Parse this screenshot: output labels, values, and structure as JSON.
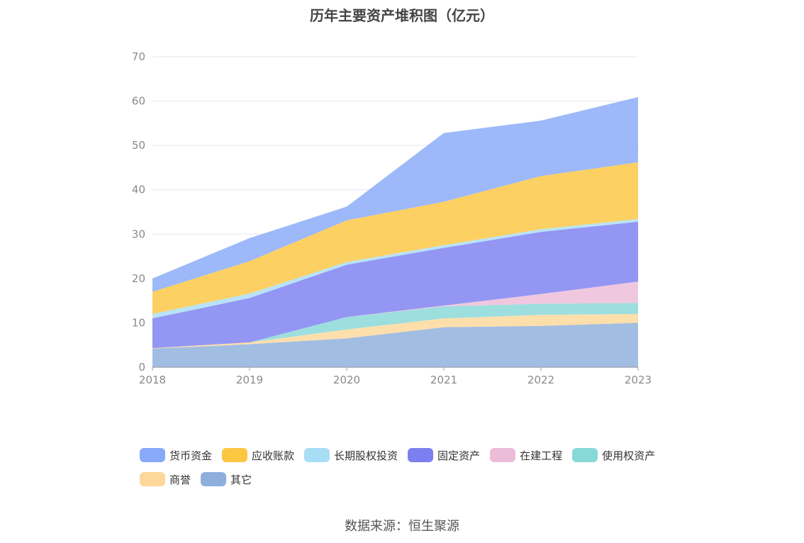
{
  "source": "数据来源：恒生聚源",
  "chart_data": {
    "type": "area",
    "stacked": true,
    "title": "历年主要资产堆积图（亿元）",
    "x": [
      "2018",
      "2019",
      "2020",
      "2021",
      "2022",
      "2023"
    ],
    "ylim": [
      0,
      70
    ],
    "yticks": [
      0,
      10,
      20,
      30,
      40,
      50,
      60,
      70
    ],
    "grid": true,
    "legend_position": "bottom",
    "series": [
      {
        "name": "其它",
        "color": "#8eaedc",
        "values": [
          4.2,
          5.2,
          6.5,
          9.0,
          9.3,
          10.0
        ]
      },
      {
        "name": "商誉",
        "color": "#fdd89a",
        "values": [
          0.1,
          0.4,
          2.0,
          2.0,
          2.5,
          2.0
        ]
      },
      {
        "name": "使用权资产",
        "color": "#88d8d8",
        "values": [
          0.0,
          0.0,
          2.8,
          2.7,
          2.5,
          2.5
        ]
      },
      {
        "name": "在建工程",
        "color": "#ecbcd8",
        "values": [
          0.0,
          0.0,
          0.0,
          0.2,
          2.2,
          4.8
        ]
      },
      {
        "name": "固定资产",
        "color": "#7b7ff0",
        "values": [
          6.7,
          10.0,
          11.8,
          13.0,
          14.0,
          13.5
        ]
      },
      {
        "name": "长期股权投资",
        "color": "#a8ddf6",
        "values": [
          1.0,
          1.0,
          0.6,
          0.6,
          0.6,
          0.6
        ]
      },
      {
        "name": "应收账款",
        "color": "#fcc641",
        "values": [
          5.0,
          7.3,
          9.4,
          9.8,
          12.0,
          12.8
        ]
      },
      {
        "name": "货币资金",
        "color": "#88a9f8",
        "values": [
          3.0,
          5.2,
          3.1,
          15.5,
          12.5,
          14.7
        ]
      }
    ],
    "legend_order": [
      "货币资金",
      "应收账款",
      "长期股权投资",
      "固定资产",
      "在建工程",
      "使用权资产",
      "商誉",
      "其它"
    ]
  }
}
